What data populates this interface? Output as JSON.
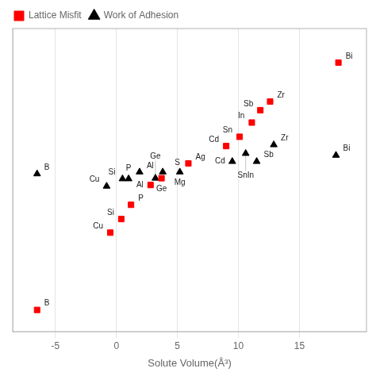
{
  "chart_data": {
    "type": "scatter",
    "xlabel": "Solute Volume(Å³)",
    "xlim": [
      -8.5,
      20.5
    ],
    "ylim": [
      -5.1,
      -0.2
    ],
    "xticks": [
      -5,
      0,
      5,
      10,
      15
    ],
    "tick_labels": "x",
    "grid": true,
    "legend": "upper left",
    "series": [
      {
        "name": "Lattice Misfit",
        "color": "red",
        "marker": "square",
        "x": [
          -6.5,
          -0.5,
          0.4,
          1.2,
          2.8,
          3.7,
          5.9,
          9.0,
          10.1,
          11.1,
          11.8,
          12.6,
          18.2
        ],
        "values": [
          -4.75,
          -3.5,
          -3.28,
          -3.05,
          -2.73,
          -2.62,
          -2.38,
          -2.1,
          -1.95,
          -1.72,
          -1.52,
          -1.38,
          -0.75
        ],
        "labels": [
          "B",
          "Cu",
          "Si",
          "P",
          "Al",
          "Ge",
          "Ag",
          "Cd",
          "Sn",
          "In",
          "Sb",
          "Zr",
          "Bi"
        ]
      },
      {
        "name": "Work of Adhesion",
        "color": "black",
        "marker": "triangle",
        "x": [
          -6.5,
          -0.8,
          0.5,
          1.0,
          1.9,
          3.2,
          3.8,
          5.2,
          9.5,
          10.6,
          11.5,
          12.9,
          18.0
        ],
        "values": [
          -2.55,
          -2.75,
          -2.63,
          -2.63,
          -2.52,
          -2.62,
          -2.52,
          -2.52,
          -2.35,
          -2.22,
          -2.35,
          -2.08,
          -2.25
        ],
        "labels": [
          "B",
          "Cu",
          "Si",
          "P",
          "Al",
          "Ge",
          "S",
          "Mg",
          "Cd",
          "SnIn",
          "Sb",
          "Zr",
          "Bi"
        ]
      }
    ]
  }
}
